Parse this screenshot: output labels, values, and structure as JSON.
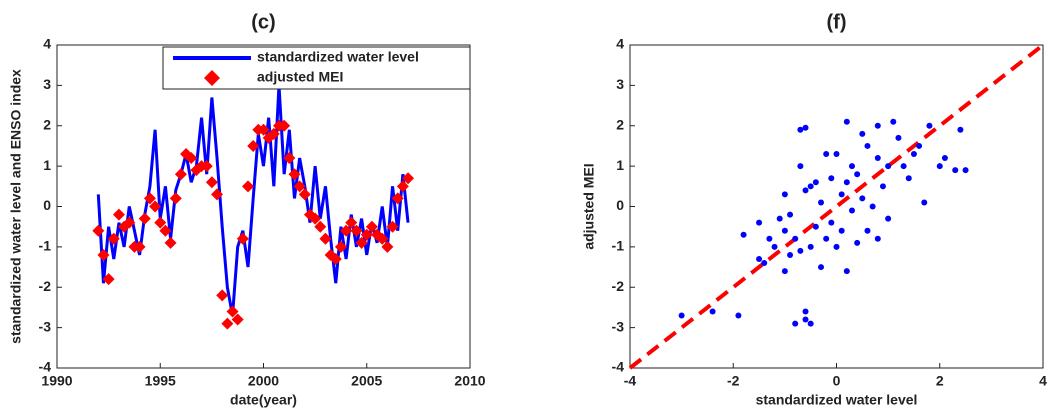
{
  "chart_data": [
    {
      "type": "line",
      "title": "(c)",
      "xlabel": "date(year)",
      "ylabel": "standardized water level and ENSO index",
      "xlim": [
        1990,
        2010
      ],
      "xticks": [
        1990,
        1995,
        2000,
        2005,
        2010
      ],
      "ylim": [
        -4,
        4
      ],
      "yticks": [
        -4,
        -3,
        -2,
        -1,
        0,
        1,
        2,
        3,
        4
      ],
      "legend": "upper right",
      "x": [
        1992,
        1992.25,
        1992.5,
        1992.75,
        1993,
        1993.25,
        1993.5,
        1993.75,
        1994,
        1994.25,
        1994.5,
        1994.75,
        1995,
        1995.25,
        1995.5,
        1995.75,
        1996,
        1996.25,
        1996.5,
        1996.75,
        1997,
        1997.25,
        1997.5,
        1997.75,
        1998,
        1998.25,
        1998.5,
        1998.75,
        1999,
        1999.25,
        1999.5,
        1999.75,
        2000,
        2000.25,
        2000.5,
        2000.75,
        2001,
        2001.25,
        2001.5,
        2001.75,
        2002,
        2002.25,
        2002.5,
        2002.75,
        2003,
        2003.25,
        2003.5,
        2003.75,
        2004,
        2004.25,
        2004.5,
        2004.75,
        2005,
        2005.25,
        2005.5,
        2005.75,
        2006,
        2006.25,
        2006.5,
        2006.75,
        2007
      ],
      "series": [
        {
          "name": "standardized water level",
          "color": "#0000ff",
          "style": "line",
          "values": [
            0.3,
            -1.9,
            -0.5,
            -1.3,
            -0.4,
            -1.0,
            0.0,
            -0.6,
            -1.2,
            -0.2,
            0.5,
            1.9,
            -0.3,
            0.5,
            -0.8,
            0.4,
            0.8,
            1.3,
            0.6,
            1.0,
            2.2,
            0.8,
            2.7,
            1.2,
            -0.5,
            -2.0,
            -2.7,
            -1.0,
            -0.6,
            -1.5,
            0.2,
            1.8,
            1.0,
            2.2,
            0.5,
            3.0,
            0.8,
            1.9,
            0.2,
            1.2,
            0.5,
            -0.4,
            1.0,
            -0.3,
            0.5,
            -0.8,
            -1.9,
            -0.5,
            -1.3,
            -0.2,
            -1.0,
            -0.3,
            -1.2,
            -0.4,
            -0.9,
            0.0,
            -1.0,
            0.5,
            -0.6,
            0.8,
            -0.4
          ]
        },
        {
          "name": "adjusted MEI",
          "color": "#ff0000",
          "style": "diamond",
          "values": [
            -0.6,
            -1.2,
            -1.8,
            -0.8,
            -0.2,
            -0.5,
            -0.4,
            -1.0,
            -1.0,
            -0.3,
            0.2,
            0.0,
            -0.4,
            -0.6,
            -0.9,
            0.2,
            0.8,
            1.3,
            1.2,
            0.9,
            1.0,
            1.0,
            0.6,
            0.3,
            -2.2,
            -2.9,
            -2.6,
            -2.8,
            -0.8,
            0.5,
            1.5,
            1.9,
            1.9,
            1.7,
            1.8,
            2.0,
            2.0,
            1.2,
            0.8,
            0.5,
            0.3,
            -0.2,
            -0.3,
            -0.5,
            -0.8,
            -1.2,
            -1.3,
            -1.0,
            -0.6,
            -0.4,
            -0.6,
            -0.9,
            -0.7,
            -0.5,
            -0.7,
            -0.8,
            -1.0,
            -0.5,
            0.2,
            0.5,
            0.7
          ]
        }
      ]
    },
    {
      "type": "scatter",
      "title": "(f)",
      "xlabel": "standardized water level",
      "ylabel": "adjusted MEI",
      "xlim": [
        -4,
        4
      ],
      "xticks": [
        -4,
        -2,
        0,
        2,
        4
      ],
      "ylim": [
        -4,
        4
      ],
      "yticks": [
        -4,
        -3,
        -2,
        -1,
        0,
        1,
        2,
        3,
        4
      ],
      "color": "#0000ff",
      "x": [
        -3.0,
        -2.4,
        -1.9,
        -1.8,
        -1.5,
        -1.4,
        -1.3,
        -1.2,
        -1.1,
        -1.0,
        -1.0,
        -0.9,
        -0.9,
        -0.8,
        -0.8,
        -0.7,
        -0.7,
        -0.6,
        -0.6,
        -0.5,
        -0.5,
        -0.4,
        -0.4,
        -0.3,
        -0.3,
        -0.2,
        -0.2,
        -0.1,
        -0.1,
        0.0,
        0.0,
        0.1,
        0.1,
        0.2,
        0.2,
        0.3,
        0.3,
        0.4,
        0.4,
        0.5,
        0.5,
        0.6,
        0.6,
        0.7,
        0.8,
        0.8,
        0.9,
        1.0,
        1.0,
        1.1,
        1.2,
        1.3,
        1.4,
        1.5,
        1.6,
        1.7,
        1.8,
        2.0,
        2.1,
        2.3,
        2.4,
        2.5,
        -0.7,
        -0.6,
        -0.5,
        -0.6,
        0.8,
        -1.5,
        -1.0,
        0.2
      ],
      "values": [
        -2.7,
        -2.6,
        -2.7,
        -0.7,
        -0.4,
        -1.4,
        -0.8,
        -1.0,
        -0.3,
        -0.6,
        -1.6,
        -1.2,
        -0.2,
        -0.8,
        -2.9,
        1.9,
        -1.1,
        0.4,
        -2.6,
        -1.0,
        -2.9,
        0.6,
        -0.5,
        -1.5,
        0.1,
        -0.8,
        1.3,
        -0.4,
        0.7,
        -1.0,
        1.3,
        -0.6,
        0.3,
        -1.6,
        2.1,
        -0.1,
        1.0,
        0.8,
        -0.9,
        0.2,
        1.8,
        1.5,
        -0.6,
        0.0,
        1.2,
        2.0,
        0.5,
        1.0,
        -0.3,
        2.1,
        1.7,
        1.0,
        0.7,
        1.3,
        1.5,
        0.1,
        2.0,
        1.0,
        1.2,
        0.9,
        1.9,
        0.9,
        1.0,
        -2.8,
        0.5,
        1.95,
        -0.8,
        -1.3,
        0.3,
        0.6
      ],
      "reference_line": {
        "x": [
          -4,
          4
        ],
        "y": [
          -4,
          4
        ],
        "color": "#ff0000"
      }
    }
  ]
}
